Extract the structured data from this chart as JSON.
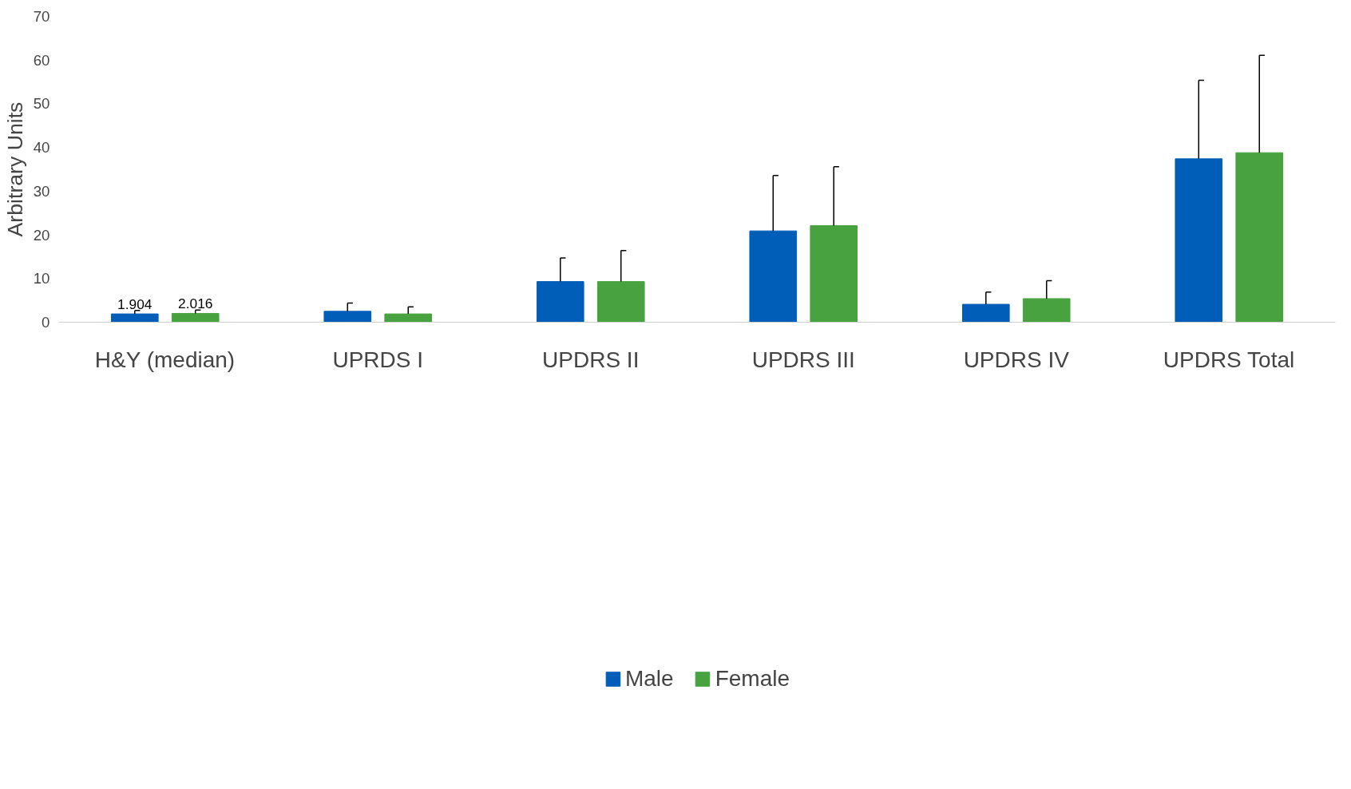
{
  "chart_data": {
    "type": "bar",
    "ylabel": "Arbitrary Units",
    "categories": [
      "H&Y (median)",
      "UPRDS I",
      "UPDRS II",
      "UPDRS III",
      "UPDRS IV",
      "UPDRS Total"
    ],
    "series": [
      {
        "name": "Male",
        "color": "#005eb8",
        "values": [
          1.904,
          2.5,
          9.3,
          20.9,
          4.1,
          37.4
        ],
        "errors": [
          [
            1.904,
            2.7
          ],
          [
            2.5,
            4.4
          ],
          [
            9.3,
            14.7
          ],
          [
            20.9,
            33.6
          ],
          [
            4.1,
            6.9
          ],
          [
            37.4,
            55.4
          ]
        ],
        "value_labels": [
          "1.904",
          null,
          null,
          null,
          null,
          null
        ]
      },
      {
        "name": "Female",
        "color": "#48a23f",
        "values": [
          2.016,
          1.9,
          9.3,
          22.1,
          5.4,
          38.8
        ],
        "errors": [
          [
            2.016,
            2.8
          ],
          [
            1.9,
            3.5
          ],
          [
            9.3,
            16.4
          ],
          [
            22.1,
            35.6
          ],
          [
            5.4,
            9.5
          ],
          [
            38.8,
            61.1
          ]
        ],
        "value_labels": [
          "2.016",
          null,
          null,
          null,
          null,
          null
        ]
      }
    ],
    "ylim": [
      0,
      70
    ],
    "yticks": [
      0,
      10,
      20,
      30,
      40,
      50,
      60,
      70
    ],
    "grid": false,
    "legend": "bottom"
  }
}
